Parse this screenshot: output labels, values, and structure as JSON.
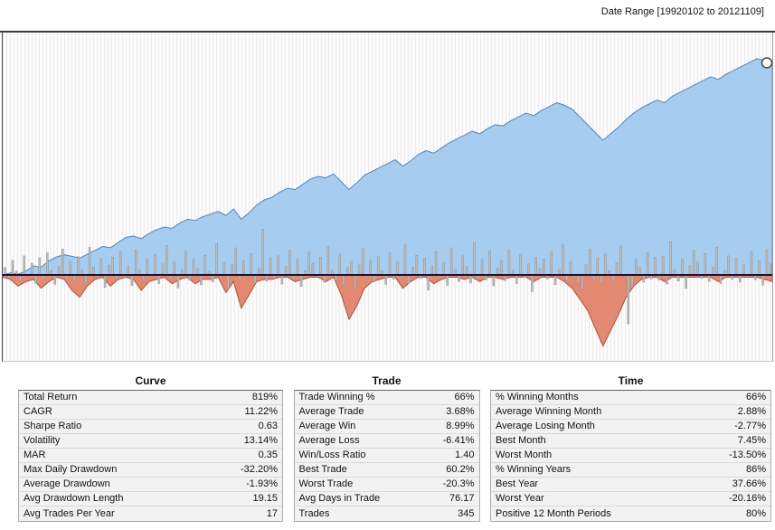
{
  "header": {
    "date_range_label": "Date Range [19920102 to 20121109]"
  },
  "chart_data": {
    "type": "area",
    "title": "",
    "xlabel": "",
    "ylabel": "",
    "x_range": [
      "19920102",
      "20121109"
    ],
    "baseline": 0,
    "grid": "fine-vertical-stripes",
    "legend": "none",
    "equity_axis_range": [
      0,
      880
    ],
    "drawdown_axis_range": [
      -35,
      0
    ],
    "end_marker": true,
    "series": [
      {
        "name": "equity_curve_pct",
        "type": "area",
        "color": "#a6cdf0",
        "stroke": "#4d86b8",
        "values": [
          0,
          8,
          3,
          15,
          35,
          30,
          55,
          70,
          78,
          72,
          65,
          80,
          95,
          110,
          105,
          125,
          145,
          150,
          140,
          160,
          175,
          185,
          180,
          200,
          215,
          210,
          225,
          235,
          245,
          230,
          255,
          215,
          240,
          270,
          290,
          300,
          320,
          335,
          330,
          350,
          370,
          380,
          375,
          390,
          360,
          330,
          355,
          385,
          400,
          415,
          430,
          445,
          420,
          440,
          465,
          480,
          470,
          490,
          510,
          525,
          540,
          555,
          545,
          565,
          580,
          575,
          595,
          610,
          625,
          615,
          635,
          650,
          665,
          655,
          640,
          610,
          580,
          550,
          520,
          545,
          570,
          600,
          625,
          645,
          660,
          675,
          665,
          690,
          705,
          720,
          735,
          750,
          765,
          755,
          775,
          790,
          805,
          820,
          835,
          828,
          819
        ]
      },
      {
        "name": "drawdown_pct",
        "type": "area",
        "color": "#e2836a",
        "stroke": "#a8543e",
        "values": [
          -1,
          -2,
          -5,
          -3,
          -2,
          -6,
          -3,
          -1,
          -2,
          -7,
          -10,
          -5,
          -2,
          -1,
          -5,
          -2,
          -1,
          -2,
          -7,
          -3,
          -2,
          -1,
          -4,
          -2,
          -1,
          -4,
          -2,
          -2,
          -1,
          -8,
          -3,
          -15,
          -9,
          -3,
          -2,
          -2,
          -1,
          -1,
          -3,
          -2,
          -1,
          -1,
          -3,
          -1,
          -9,
          -20,
          -14,
          -6,
          -3,
          -2,
          -1,
          -1,
          -6,
          -3,
          -1,
          -1,
          -4,
          -2,
          -1,
          -1,
          -2,
          -1,
          -3,
          -1,
          -1,
          -2,
          -1,
          -1,
          -1,
          -3,
          -1,
          -1,
          -1,
          -3,
          -6,
          -11,
          -16,
          -24,
          -32,
          -25,
          -18,
          -10,
          -5,
          -2,
          -1,
          -1,
          -3,
          -1,
          -1,
          -1,
          -1,
          -1,
          -1,
          -3,
          -1,
          -1,
          -1,
          -1,
          -1,
          -2,
          -3
        ]
      },
      {
        "name": "period_returns_pct",
        "type": "bar",
        "color": "#bdbdbd",
        "stroke": "#8f8f8f",
        "values": [
          1.2,
          -0.8,
          2.4,
          0.6,
          -1.6,
          3.1,
          -0.4,
          1.9,
          -2.3,
          2.8,
          -1.1,
          3.6,
          0.7,
          -2.6,
          1.4,
          4.2,
          -0.9,
          2.2,
          -1.8,
          3.0,
          0.8,
          -2.1,
          4.5,
          1.3,
          -0.6,
          2.7,
          -3.4,
          1.6,
          2.9,
          -1.2,
          3.8,
          -0.7,
          1.5,
          -2.9,
          4.1,
          0.9,
          -1.4,
          2.6,
          -0.5,
          3.3,
          -2.4,
          1.8,
          4.8,
          -1.0,
          2.1,
          -3.6,
          0.8,
          3.9,
          -1.5,
          2.5,
          1.0,
          -2.7,
          3.2,
          0.5,
          -1.9,
          5.1,
          -0.8,
          2.0,
          -3.8,
          1.7,
          4.4,
          -1.3,
          2.3,
          -0.6,
          3.5,
          -2.2,
          1.1,
          7.45,
          -1.7,
          2.8,
          -0.9,
          3.1,
          -2.5,
          1.4,
          4.0,
          -1.1,
          2.6,
          -3.2,
          0.7,
          3.7,
          1.9,
          -0.5,
          2.9,
          -2.0,
          4.6,
          0.8,
          -1.6,
          3.4,
          -2.8,
          1.2,
          2.2,
          -3.5,
          1.6,
          4.3,
          -0.7,
          2.4,
          -1.9,
          3.0,
          0.6,
          -2.6,
          3.6,
          -1.2,
          2.1,
          -0.8,
          4.9,
          -2.3,
          1.3,
          3.2,
          -1.0,
          2.7,
          -4.2,
          1.5,
          3.8,
          -0.6,
          2.0,
          -2.9,
          4.4,
          0.9,
          -1.8,
          3.1,
          1.4,
          -2.2,
          5.3,
          -0.9,
          2.5,
          -1.4,
          3.9,
          -3.0,
          1.1,
          2.3,
          -1.6,
          4.1,
          0.8,
          -2.4,
          3.3,
          -0.7,
          1.8,
          -4.6,
          2.9,
          1.0,
          2.6,
          -1.1,
          3.7,
          -2.7,
          0.9,
          5.0,
          -1.5,
          2.2,
          -0.8,
          -2.1,
          -3.9,
          1.7,
          4.2,
          -1.3,
          2.8,
          -2.1,
          3.4,
          0.7,
          -1.9,
          2.0,
          4.7,
          -0.6,
          -13.5,
          -3.3,
          2.5,
          1.2,
          -2.0,
          3.6,
          -1.1,
          2.9,
          -1.4,
          3.0,
          -2.5,
          5.4,
          0.8,
          -1.7,
          2.6,
          -3.7,
          1.5,
          4.0,
          2.1,
          -0.9,
          3.5,
          -1.8,
          1.3,
          4.5,
          -2.4,
          0.7,
          3.1,
          -1.2,
          2.7,
          -2.0,
          1.6,
          -0.5,
          3.8,
          -1.3,
          2.3,
          -2.8,
          4.1,
          1.8
        ]
      }
    ]
  },
  "tables": [
    {
      "title": "Curve",
      "rows": [
        {
          "label": "Total Return",
          "value": "819%"
        },
        {
          "label": "CAGR",
          "value": "11.22%"
        },
        {
          "label": "Sharpe Ratio",
          "value": "0.63"
        },
        {
          "label": "Volatility",
          "value": "13.14%"
        },
        {
          "label": "MAR",
          "value": "0.35"
        },
        {
          "label": "Max Daily Drawdown",
          "value": "-32.20%"
        },
        {
          "label": "Average Drawdown",
          "value": "-1.93%"
        },
        {
          "label": "Avg Drawdown Length",
          "value": "19.15"
        },
        {
          "label": "Avg Trades Per Year",
          "value": "17"
        }
      ]
    },
    {
      "title": "Trade",
      "rows": [
        {
          "label": "Trade Winning %",
          "value": "66%"
        },
        {
          "label": "Average Trade",
          "value": "3.68%"
        },
        {
          "label": "Average Win",
          "value": "8.99%"
        },
        {
          "label": "Average Loss",
          "value": "-6.41%"
        },
        {
          "label": "Win/Loss Ratio",
          "value": "1.40"
        },
        {
          "label": "Best Trade",
          "value": "60.2%"
        },
        {
          "label": "Worst Trade",
          "value": "-20.3%"
        },
        {
          "label": "Avg Days in Trade",
          "value": "76.17"
        },
        {
          "label": "Trades",
          "value": "345"
        }
      ]
    },
    {
      "title": "Time",
      "rows": [
        {
          "label": "% Winning Months",
          "value": "66%"
        },
        {
          "label": "Average Winning Month",
          "value": "2.88%"
        },
        {
          "label": "Average Losing Month",
          "value": "-2.77%"
        },
        {
          "label": "Best Month",
          "value": "7.45%"
        },
        {
          "label": "Worst Month",
          "value": "-13.50%"
        },
        {
          "label": "% Winning Years",
          "value": "86%"
        },
        {
          "label": "Best Year",
          "value": "37.66%"
        },
        {
          "label": "Worst Year",
          "value": "-20.16%"
        },
        {
          "label": "Positive 12 Month Periods",
          "value": "80%"
        }
      ]
    }
  ]
}
